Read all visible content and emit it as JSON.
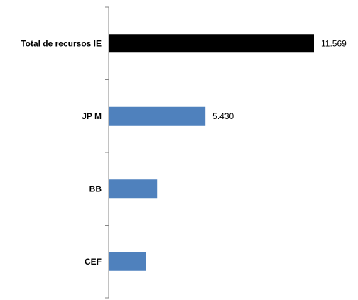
{
  "chart_data": {
    "type": "bar",
    "orientation": "horizontal",
    "categories": [
      "Total de recursos IE",
      "JP M",
      "BB",
      "CEF"
    ],
    "values": [
      11569,
      5430,
      2700,
      2050
    ],
    "data_labels": [
      "11.569",
      "5.430",
      "",
      ""
    ],
    "bar_colors": [
      "#000000",
      "#4f81bd",
      "#4f81bd",
      "#4f81bd"
    ],
    "xlim": [
      0,
      11569
    ],
    "grid": false,
    "legend": "none"
  }
}
